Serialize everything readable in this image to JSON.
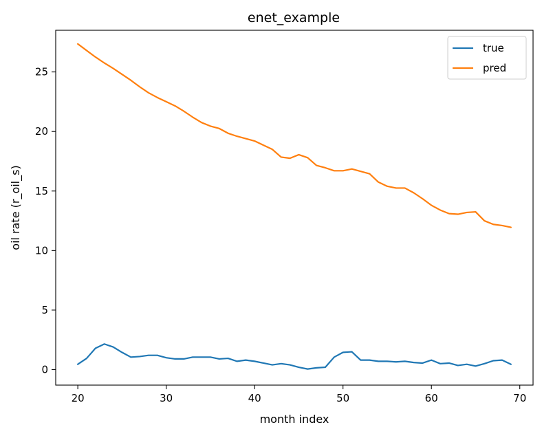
{
  "chart_data": {
    "type": "line",
    "title": "enet_example",
    "xlabel": "month index",
    "ylabel": "oil rate (r_oil_s)",
    "xlim": [
      17.5,
      71.5
    ],
    "ylim": [
      -1.3,
      28.5
    ],
    "xticks": [
      20,
      30,
      40,
      50,
      60,
      70
    ],
    "yticks": [
      0,
      5,
      10,
      15,
      20,
      25
    ],
    "grid": false,
    "legend_position": "top-right",
    "x": [
      20,
      21,
      22,
      23,
      24,
      25,
      26,
      27,
      28,
      29,
      30,
      31,
      32,
      33,
      34,
      35,
      36,
      37,
      38,
      39,
      40,
      41,
      42,
      43,
      44,
      45,
      46,
      47,
      48,
      49,
      50,
      51,
      52,
      53,
      54,
      55,
      56,
      57,
      58,
      59,
      60,
      61,
      62,
      63,
      64,
      65,
      66,
      67,
      68,
      69
    ],
    "series": [
      {
        "name": "true",
        "color": "#1f77b4",
        "values": [
          0.45,
          0.95,
          1.8,
          2.15,
          1.9,
          1.45,
          1.05,
          1.1,
          1.2,
          1.2,
          1.0,
          0.9,
          0.9,
          1.05,
          1.05,
          1.05,
          0.9,
          0.95,
          0.7,
          0.8,
          0.7,
          0.55,
          0.4,
          0.5,
          0.4,
          0.2,
          0.05,
          0.15,
          0.2,
          1.05,
          1.45,
          1.5,
          0.8,
          0.8,
          0.7,
          0.7,
          0.65,
          0.7,
          0.6,
          0.55,
          0.8,
          0.5,
          0.55,
          0.35,
          0.45,
          0.3,
          0.5,
          0.75,
          0.8,
          0.45
        ]
      },
      {
        "name": "pred",
        "color": "#ff7f0e",
        "values": [
          27.35,
          26.8,
          26.25,
          25.75,
          25.3,
          24.8,
          24.3,
          23.75,
          23.25,
          22.85,
          22.5,
          22.15,
          21.7,
          21.2,
          20.75,
          20.45,
          20.25,
          19.85,
          19.6,
          19.4,
          19.2,
          18.85,
          18.5,
          17.85,
          17.75,
          18.05,
          17.8,
          17.15,
          16.95,
          16.7,
          16.7,
          16.85,
          16.65,
          16.45,
          15.75,
          15.4,
          15.25,
          15.25,
          14.85,
          14.35,
          13.8,
          13.4,
          13.1,
          13.05,
          13.2,
          13.25,
          12.5,
          12.2,
          12.1,
          11.95
        ]
      }
    ]
  }
}
